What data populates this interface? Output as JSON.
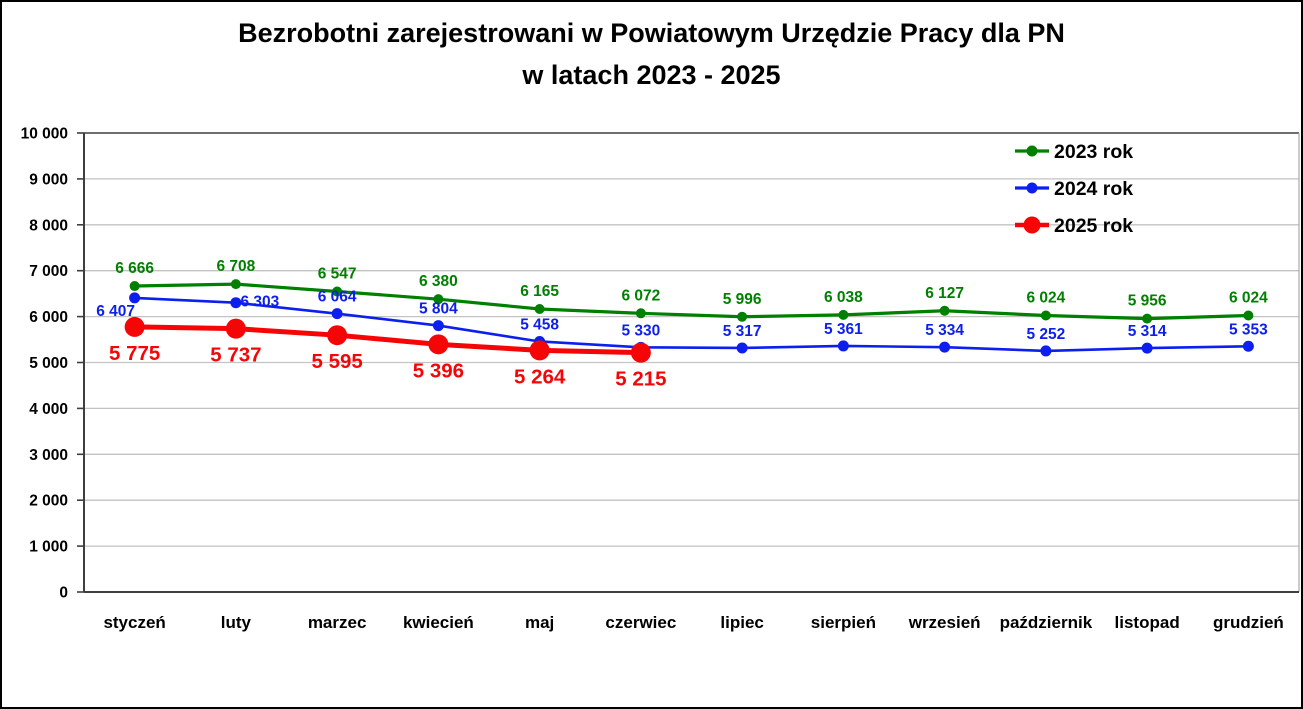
{
  "title": {
    "line1": "Bezrobotni zarejestrowani w Powiatowym Urzędzie Pracy dla PN",
    "line2": "w latach 2023 - 2025"
  },
  "chart_data": {
    "type": "line",
    "title": "Bezrobotni zarejestrowani w Powiatowym Urzędzie Pracy dla PN w latach 2023 - 2025",
    "title_lines": [
      "Bezrobotni zarejestrowani w Powiatowym Urzędzie Pracy dla PN",
      "w latach 2023 - 2025"
    ],
    "categories": [
      "styczeń",
      "luty",
      "marzec",
      "kwiecień",
      "maj",
      "czerwiec",
      "lipiec",
      "sierpień",
      "wrzesień",
      "październik",
      "listopad",
      "grudzień"
    ],
    "series": [
      {
        "name": "2023 rok",
        "color": "#008000",
        "values": [
          6666,
          6708,
          6547,
          6380,
          6165,
          6072,
          5996,
          6038,
          6127,
          6024,
          5956,
          6024
        ]
      },
      {
        "name": "2024 rok",
        "color": "#0D1FEF",
        "values": [
          6407,
          6303,
          6064,
          5804,
          5458,
          5330,
          5317,
          5361,
          5334,
          5252,
          5314,
          5353
        ]
      },
      {
        "name": "2025 rok",
        "color": "#F50505",
        "values": [
          5775,
          5737,
          5595,
          5396,
          5264,
          5215
        ]
      }
    ],
    "ylim": [
      0,
      10000
    ],
    "ytick_step": 1000,
    "yticks": [
      0,
      1000,
      2000,
      3000,
      4000,
      5000,
      6000,
      7000,
      8000,
      9000,
      10000
    ],
    "number_format": "space-thousands",
    "grid": "horizontal",
    "gridline_color": "#C3C3C3",
    "axis_color": "#3F3F3F",
    "plot_border_color": "#6E6E6E",
    "legend_position": "top-right",
    "legend_labels": [
      "2023 rok",
      "2024 rok",
      "2025 rok"
    ],
    "data_labels": true
  }
}
